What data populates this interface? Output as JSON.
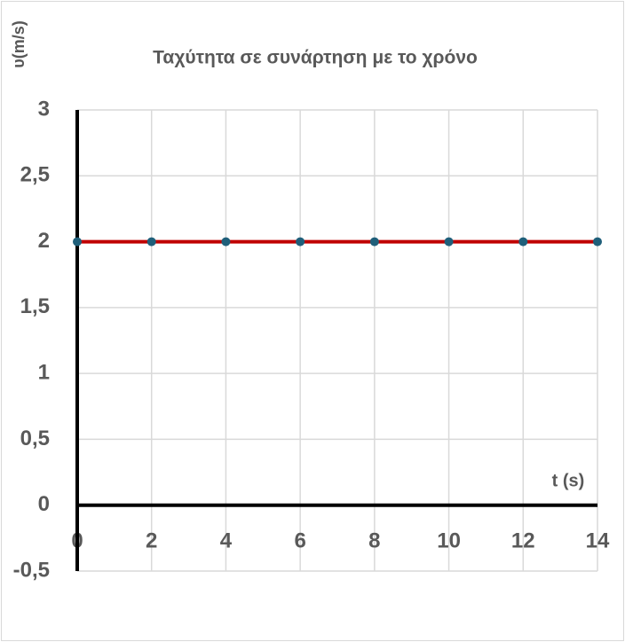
{
  "chart_data": {
    "type": "line",
    "title": "Ταχύτητα σε συνάρτηση με το χρόνο",
    "x_label": "t (s)",
    "y_label": "υ(m/s)",
    "x": [
      0,
      2,
      4,
      6,
      8,
      10,
      12,
      14
    ],
    "series": [
      {
        "color": "#c00000",
        "marker_color": "#1f5f7a",
        "values": [
          2,
          2,
          2,
          2,
          2,
          2,
          2,
          2
        ]
      }
    ],
    "xlim": [
      0,
      14
    ],
    "xticks": [
      0,
      2,
      4,
      6,
      8,
      10,
      12,
      14
    ],
    "ylim": [
      -0.5,
      3
    ],
    "yticks": [
      {
        "value": -0.5,
        "label": "-0,5"
      },
      0,
      {
        "value": 0.5,
        "label": "0,5"
      },
      1,
      {
        "value": 1.5,
        "label": "1,5"
      },
      2,
      {
        "value": 2.5,
        "label": "2,5"
      },
      3
    ],
    "grid": true
  }
}
